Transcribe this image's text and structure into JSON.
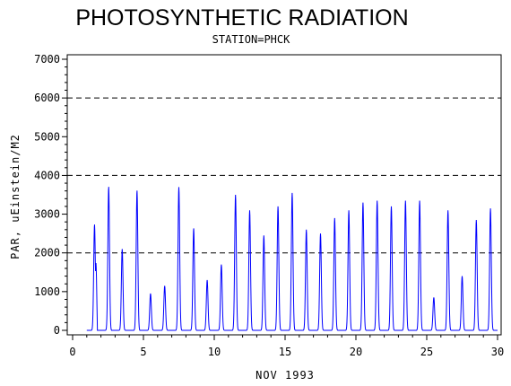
{
  "chart_data": {
    "type": "line",
    "title": "PHOTOSYNTHETIC RADIATION",
    "subtitle": "STATION=PHCK",
    "xlabel": "NOV 1993",
    "ylabel": "PAR, uEinstein/M2",
    "xlim": [
      0,
      30
    ],
    "ylim": [
      0,
      7000
    ],
    "xticks": [
      0,
      5,
      10,
      15,
      20,
      25,
      30
    ],
    "yticks": [
      0,
      1000,
      2000,
      3000,
      4000,
      5000,
      6000,
      7000
    ],
    "reference_lines": [
      2000,
      4000,
      6000
    ],
    "line_color": "#0000ff",
    "series": [
      {
        "daily_peaks": [
          {
            "day": 1,
            "peaks": [
              [
                0.55,
                2800
              ],
              [
                0.66,
                2300
              ]
            ]
          },
          {
            "day": 2,
            "peaks": [
              [
                0.55,
                3800
              ]
            ]
          },
          {
            "day": 3,
            "peaks": [
              [
                0.5,
                2100
              ]
            ]
          },
          {
            "day": 4,
            "peaks": [
              [
                0.55,
                3700
              ]
            ]
          },
          {
            "day": 5,
            "peaks": [
              [
                0.5,
                950
              ]
            ]
          },
          {
            "day": 6,
            "peaks": [
              [
                0.5,
                1150
              ]
            ]
          },
          {
            "day": 7,
            "peaks": [
              [
                0.5,
                3700
              ]
            ]
          },
          {
            "day": 8,
            "peaks": [
              [
                0.55,
                2700
              ]
            ]
          },
          {
            "day": 9,
            "peaks": [
              [
                0.5,
                1300
              ]
            ]
          },
          {
            "day": 10,
            "peaks": [
              [
                0.5,
                1700
              ]
            ]
          },
          {
            "day": 11,
            "peaks": [
              [
                0.5,
                3500
              ]
            ]
          },
          {
            "day": 12,
            "peaks": [
              [
                0.5,
                3100
              ]
            ]
          },
          {
            "day": 13,
            "peaks": [
              [
                0.5,
                2450
              ]
            ]
          },
          {
            "day": 14,
            "peaks": [
              [
                0.5,
                3200
              ]
            ]
          },
          {
            "day": 15,
            "peaks": [
              [
                0.5,
                3550
              ]
            ]
          },
          {
            "day": 16,
            "peaks": [
              [
                0.5,
                2600
              ]
            ]
          },
          {
            "day": 17,
            "peaks": [
              [
                0.5,
                2500
              ]
            ]
          },
          {
            "day": 18,
            "peaks": [
              [
                0.5,
                2900
              ]
            ]
          },
          {
            "day": 19,
            "peaks": [
              [
                0.5,
                3100
              ]
            ]
          },
          {
            "day": 20,
            "peaks": [
              [
                0.5,
                3300
              ]
            ]
          },
          {
            "day": 21,
            "peaks": [
              [
                0.5,
                3350
              ]
            ]
          },
          {
            "day": 22,
            "peaks": [
              [
                0.5,
                3200
              ]
            ]
          },
          {
            "day": 23,
            "peaks": [
              [
                0.5,
                3350
              ]
            ]
          },
          {
            "day": 24,
            "peaks": [
              [
                0.5,
                3350
              ]
            ]
          },
          {
            "day": 25,
            "peaks": [
              [
                0.5,
                850
              ]
            ]
          },
          {
            "day": 26,
            "peaks": [
              [
                0.5,
                3100
              ]
            ]
          },
          {
            "day": 27,
            "peaks": [
              [
                0.5,
                1400
              ]
            ]
          },
          {
            "day": 28,
            "peaks": [
              [
                0.5,
                2850
              ]
            ]
          },
          {
            "day": 29,
            "peaks": [
              [
                0.5,
                3150
              ]
            ]
          }
        ]
      }
    ]
  }
}
